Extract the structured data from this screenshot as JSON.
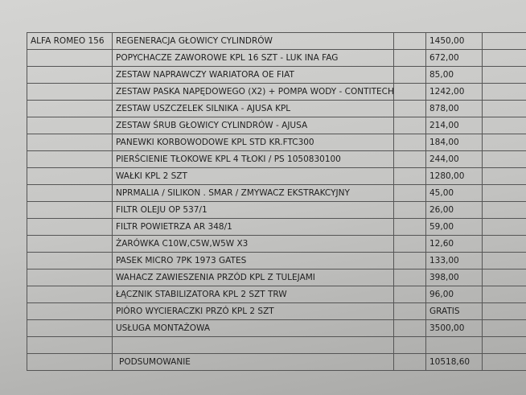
{
  "vehicle": "ALFA ROMEO 156",
  "items": [
    {
      "name": "REGENERACJA GŁOWICY CYLINDRÓW",
      "price": "1450,00"
    },
    {
      "name": "POPYCHACZE ZAWOROWE KPL 16 SZT - LUK INA FAG",
      "price": "672,00"
    },
    {
      "name": "ZESTAW NAPRAWCZY WARIATORA OE FIAT",
      "price": "85,00"
    },
    {
      "name": "ZESTAW PASKA NAPĘDOWEGO (X2) + POMPA WODY - CONTITECH",
      "price": "1242,00"
    },
    {
      "name": "ZESTAW USZCZELEK SILNIKA - AJUSA KPL",
      "price": "878,00"
    },
    {
      "name": "ZESTAW ŚRUB GŁOWICY CYLINDRÓW - AJUSA",
      "price": "214,00"
    },
    {
      "name": "PANEWKI KORBOWODOWE KPL STD KR.FTC300",
      "price": "184,00"
    },
    {
      "name": "PIERŚCIENIE TŁOKOWE KPL 4 TŁOKI / PS 1050830100",
      "price": "244,00"
    },
    {
      "name": "WAŁKI KPL 2 SZT",
      "price": "1280,00"
    },
    {
      "name": "NPRMALIA / SILIKON . SMAR / ZMYWACZ EKSTRAKCYJNY",
      "price": "45,00"
    },
    {
      "name": "FILTR OLEJU OP 537/1",
      "price": "26,00"
    },
    {
      "name": "FILTR POWIETRZA AR 348/1",
      "price": "59,00"
    },
    {
      "name": "ŻARÓWKA C10W,C5W,W5W X3",
      "price": "12,60"
    },
    {
      "name": "PASEK MICRO 7PK 1973   GATES",
      "price": "133,00"
    },
    {
      "name": "WAHACZ ZAWIESZENIA PRZÓD KPL Z TULEJAMI",
      "price": "398,00"
    },
    {
      "name": "ŁĄCZNIK STABILIZATORA KPL 2 SZT TRW",
      "price": "96,00"
    },
    {
      "name": "PIÓRO WYCIERACZKI PRZÓ KPL 2 SZT",
      "price": "GRATIS"
    },
    {
      "name": "USŁUGA MONTAŻOWA",
      "price": "3500,00"
    }
  ],
  "summary": {
    "label": "PODSUMOWANIE",
    "total": "10518,60"
  }
}
